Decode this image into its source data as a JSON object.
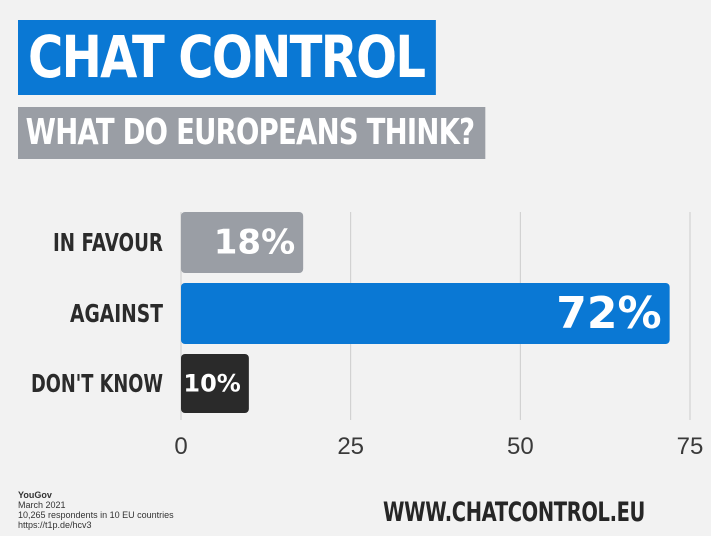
{
  "header": {
    "title": "CHAT CONTROL",
    "subtitle": "WHAT DO EUROPEANS THINK?"
  },
  "colors": {
    "title_bg": "#0a78d4",
    "subtitle_bg": "#9a9ea5",
    "in_favour": "#9a9ea5",
    "against": "#0a78d4",
    "dont_know": "#2a2a2a",
    "gridline": "#cccccc"
  },
  "chart_data": {
    "type": "bar",
    "orientation": "horizontal",
    "categories": [
      "IN FAVOUR",
      "AGAINST",
      "DON'T KNOW"
    ],
    "values": [
      18,
      72,
      10
    ],
    "value_labels": [
      "18%",
      "72%",
      "10%"
    ],
    "bar_colors": [
      "#9a9ea5",
      "#0a78d4",
      "#2a2a2a"
    ],
    "xlim": [
      0,
      75
    ],
    "xticks": [
      0,
      25,
      50,
      75
    ],
    "grid": true,
    "title": "CHAT CONTROL",
    "subtitle": "WHAT DO EUROPEANS THINK?"
  },
  "source": {
    "name": "YouGov",
    "date": "March 2021",
    "respondents": "10,265 respondents in 10 EU countries",
    "link": "https://t1p.de/hcv3"
  },
  "footer": {
    "website": "WWW.CHATCONTROL.EU"
  }
}
